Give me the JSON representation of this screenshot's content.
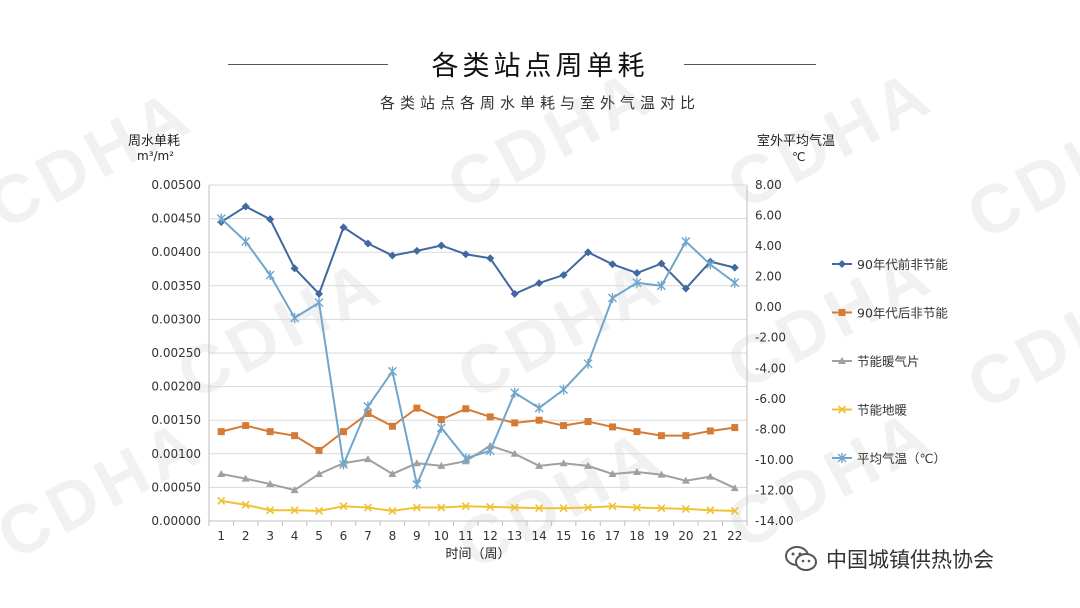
{
  "header": {
    "title": "各类站点周单耗",
    "subtitle": "各类站点各周水单耗与室外气温对比"
  },
  "watermark": {
    "text": "CDHA"
  },
  "footer": {
    "brand": "中国城镇供热协会",
    "icon": "wechat-icon"
  },
  "chart_data": {
    "type": "line",
    "xlabel": "时间（周）",
    "ylabel": "周水单耗",
    "ylabel_unit": "m³/m²",
    "y2label": "室外平均气温",
    "y2label_unit": "℃",
    "x": [
      1,
      2,
      3,
      4,
      5,
      6,
      7,
      8,
      9,
      10,
      11,
      12,
      13,
      14,
      15,
      16,
      17,
      18,
      19,
      20,
      21,
      22
    ],
    "ylim": [
      0,
      0.005
    ],
    "ytick_step": 0.0005,
    "ytick_labels": [
      "0.00000",
      "0.00050",
      "0.00100",
      "0.00150",
      "0.00200",
      "0.00250",
      "0.00300",
      "0.00350",
      "0.00400",
      "0.00450",
      "0.00500"
    ],
    "y2lim": [
      -14,
      8
    ],
    "y2tick_step": 2,
    "y2tick_labels": [
      "-14.00",
      "-12.00",
      "-10.00",
      "-8.00",
      "-6.00",
      "-4.00",
      "-2.00",
      "0.00",
      "2.00",
      "4.00",
      "6.00",
      "8.00"
    ],
    "grid": "horizontal",
    "legend_position": "right",
    "series": [
      {
        "name": "90年代前非节能",
        "axis": "left",
        "color": "#41689f",
        "marker": "diamond",
        "values": [
          0.00445,
          0.00468,
          0.00449,
          0.00376,
          0.00338,
          0.00437,
          0.00413,
          0.00395,
          0.00402,
          0.0041,
          0.00397,
          0.00391,
          0.00338,
          0.00354,
          0.00366,
          0.004,
          0.00382,
          0.00369,
          0.00383,
          0.00346,
          0.00386,
          0.00377
        ]
      },
      {
        "name": "90年代后非节能",
        "axis": "left",
        "color": "#d57b36",
        "marker": "square",
        "values": [
          0.00133,
          0.00142,
          0.00133,
          0.00127,
          0.00105,
          0.00133,
          0.0016,
          0.00141,
          0.00168,
          0.00151,
          0.00167,
          0.00155,
          0.00146,
          0.0015,
          0.00142,
          0.00148,
          0.0014,
          0.00133,
          0.00127,
          0.00127,
          0.00134,
          0.00139
        ]
      },
      {
        "name": "节能暖气片",
        "axis": "left",
        "color": "#a0a0a0",
        "marker": "triangle",
        "values": [
          0.0007,
          0.00063,
          0.00055,
          0.00046,
          0.0007,
          0.00086,
          0.00092,
          0.0007,
          0.00086,
          0.00082,
          0.00089,
          0.00112,
          0.001,
          0.00082,
          0.00086,
          0.00082,
          0.0007,
          0.00073,
          0.00069,
          0.0006,
          0.00066,
          0.00049
        ]
      },
      {
        "name": "节能地暖",
        "axis": "left",
        "color": "#f0c232",
        "marker": "x",
        "values": [
          0.0003,
          0.00024,
          0.00016,
          0.00016,
          0.00015,
          0.00022,
          0.0002,
          0.00015,
          0.0002,
          0.0002,
          0.00022,
          0.00021,
          0.0002,
          0.00019,
          0.00019,
          0.0002,
          0.00022,
          0.0002,
          0.00019,
          0.00018,
          0.00016,
          0.00015
        ]
      },
      {
        "name": "平均气温（℃）",
        "axis": "right",
        "color": "#6fa6cc",
        "marker": "star",
        "values": [
          5.8,
          4.3,
          2.1,
          -0.7,
          0.3,
          -10.3,
          -6.5,
          -4.2,
          -11.6,
          -7.9,
          -9.9,
          -9.4,
          -5.6,
          -6.6,
          -5.4,
          -3.7,
          0.6,
          1.6,
          1.4,
          4.3,
          2.8,
          1.6
        ]
      }
    ]
  }
}
